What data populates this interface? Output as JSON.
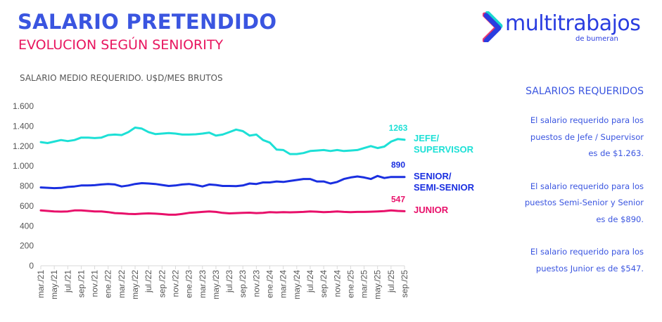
{
  "header": {
    "title": "SALARIO PRETENDIDO",
    "subtitle": "EVOLUCION SEGÚN SENIORITY",
    "caption": "SALARIO MEDIO REQUERIDO. U$D/MES BRUTOS"
  },
  "logo": {
    "name": "multitrabajos",
    "tagline": "de bumeran",
    "icon": "chevron-right-icon"
  },
  "sidebar": {
    "title": "SALARIOS REQUERIDOS",
    "paragraphs": [
      {
        "lines": [
          "El salario requerido para los",
          "puestos de Jefe / Supervisor",
          "es de $1.263."
        ]
      },
      {
        "lines": [
          "El salario requerido para los",
          "puestos Semi-Senior y Senior",
          "es de $890."
        ]
      },
      {
        "lines": [
          "El salario requerido para los",
          "puestos Junior es de $547."
        ]
      }
    ]
  },
  "colors": {
    "title": "#3a55e0",
    "subtitle": "#e8155f",
    "jefe": "#1de0d6",
    "senior": "#1a2fe0",
    "junior": "#e8106a"
  },
  "chart_data": {
    "type": "line",
    "title": "SALARIO MEDIO REQUERIDO. U$D/MES BRUTOS",
    "xlabel": "",
    "ylabel": "",
    "ylim": [
      0,
      1600
    ],
    "yticks": [
      0,
      200,
      400,
      600,
      800,
      1000,
      1200,
      1400,
      1600
    ],
    "ytick_labels": [
      "0",
      "200",
      "400",
      "600",
      "800",
      "1.000",
      "1.200",
      "1.400",
      "1.600"
    ],
    "grid": false,
    "xtick_labels": [
      "mar./21",
      "may./21",
      "jul./21",
      "sep./21",
      "nov./21",
      "ene./22",
      "mar./22",
      "may./22",
      "jul./22",
      "sep./22",
      "nov./22",
      "ene./23",
      "mar./23",
      "may./23",
      "jul./23",
      "sep./23",
      "nov./23",
      "ene./24",
      "mar./24",
      "may./24",
      "jul./24",
      "sep./24",
      "nov./24",
      "ene./25",
      "mar./25",
      "may./25",
      "jul./25",
      "sep./25"
    ],
    "x": [
      "mar./21",
      "abr./21",
      "may./21",
      "jun./21",
      "jul./21",
      "ago./21",
      "sep./21",
      "oct./21",
      "nov./21",
      "dic./21",
      "ene./22",
      "feb./22",
      "mar./22",
      "abr./22",
      "may./22",
      "jun./22",
      "jul./22",
      "ago./22",
      "sep./22",
      "oct./22",
      "nov./22",
      "dic./22",
      "ene./23",
      "feb./23",
      "mar./23",
      "abr./23",
      "may./23",
      "jun./23",
      "jul./23",
      "ago./23",
      "sep./23",
      "oct./23",
      "nov./23",
      "dic./23",
      "ene./24",
      "feb./24",
      "mar./24",
      "abr./24",
      "may./24",
      "jun./24",
      "jul./24",
      "ago./24",
      "sep./24",
      "oct./24",
      "nov./24",
      "dic./24",
      "ene./25",
      "feb./25",
      "mar./25",
      "abr./25",
      "may./25",
      "jun./25",
      "jul./25",
      "ago./25",
      "sep./25"
    ],
    "series": [
      {
        "name": "JEFE/ SUPERVISOR",
        "legend_lines": [
          "JEFE/",
          "SUPERVISOR"
        ],
        "color": "#1de0d6",
        "end_label": "1263",
        "values": [
          1240,
          1230,
          1245,
          1260,
          1250,
          1260,
          1285,
          1285,
          1280,
          1285,
          1310,
          1315,
          1310,
          1340,
          1385,
          1375,
          1340,
          1320,
          1325,
          1330,
          1325,
          1315,
          1315,
          1318,
          1325,
          1335,
          1305,
          1315,
          1340,
          1365,
          1350,
          1305,
          1315,
          1260,
          1235,
          1165,
          1160,
          1120,
          1120,
          1130,
          1150,
          1155,
          1160,
          1150,
          1160,
          1150,
          1155,
          1160,
          1180,
          1200,
          1180,
          1195,
          1245,
          1270,
          1263
        ]
      },
      {
        "name": "SENIOR/ SEMI-SENIOR",
        "legend_lines": [
          "SENIOR/",
          "SEMI-SENIOR"
        ],
        "color": "#1a2fe0",
        "end_label": "890",
        "values": [
          785,
          782,
          778,
          780,
          790,
          795,
          805,
          805,
          808,
          815,
          820,
          815,
          795,
          805,
          820,
          828,
          825,
          820,
          810,
          800,
          805,
          815,
          820,
          810,
          795,
          815,
          810,
          800,
          800,
          798,
          805,
          825,
          820,
          835,
          835,
          845,
          840,
          850,
          860,
          870,
          870,
          845,
          845,
          825,
          840,
          870,
          885,
          895,
          885,
          870,
          900,
          880,
          890,
          890,
          890
        ]
      },
      {
        "name": "JUNIOR",
        "legend_lines": [
          "JUNIOR"
        ],
        "color": "#e8106a",
        "end_label": "547",
        "values": [
          555,
          550,
          545,
          543,
          545,
          555,
          555,
          550,
          545,
          545,
          538,
          528,
          525,
          520,
          518,
          522,
          525,
          522,
          518,
          512,
          512,
          520,
          530,
          535,
          540,
          545,
          540,
          530,
          525,
          528,
          530,
          532,
          528,
          530,
          538,
          535,
          538,
          536,
          538,
          540,
          545,
          542,
          538,
          540,
          545,
          540,
          538,
          540,
          540,
          542,
          545,
          548,
          555,
          550,
          547
        ]
      }
    ]
  }
}
